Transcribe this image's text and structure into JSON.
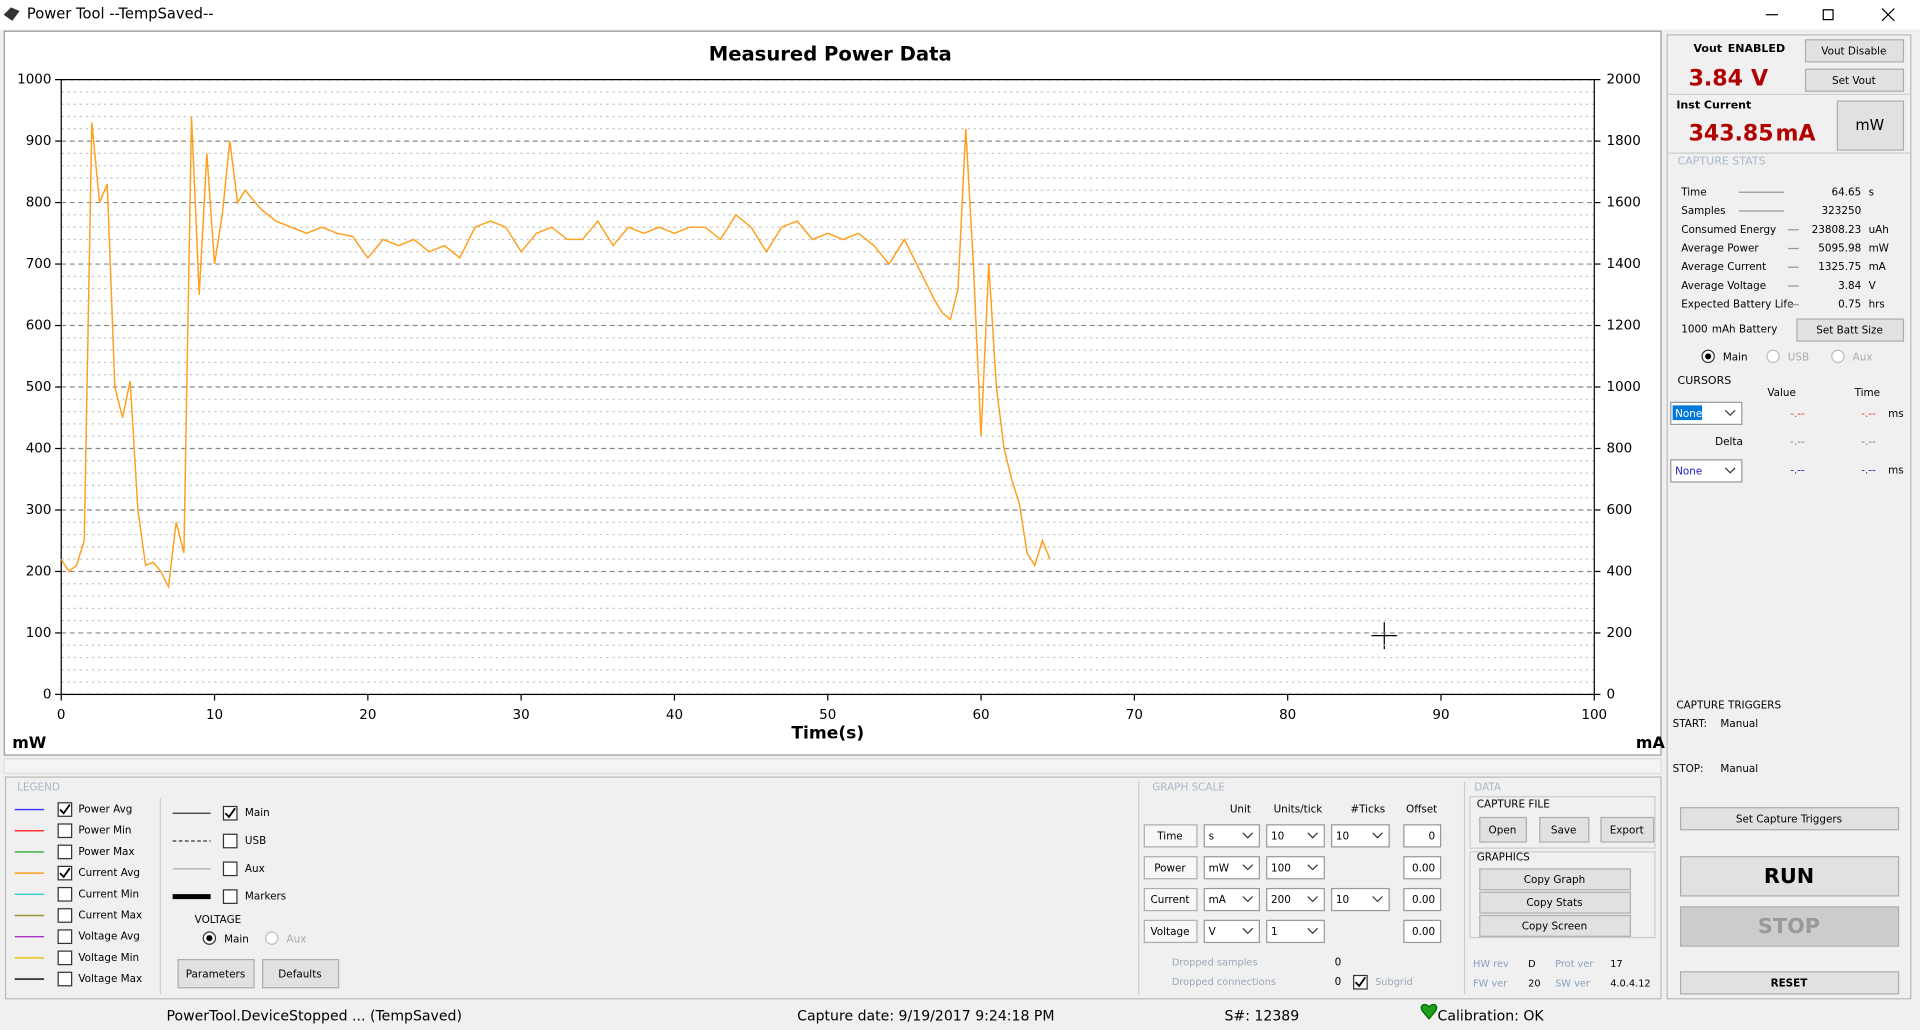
{
  "window": {
    "title": "Power Tool --TempSaved--"
  },
  "chart_data": {
    "type": "line",
    "title": "Measured Power Data",
    "x_label": "Time(s)",
    "y_label": "mW",
    "y2_label": "mA",
    "x": [
      0,
      0.5,
      1,
      1.5,
      2,
      2.5,
      3,
      3.5,
      4,
      4.5,
      5,
      5.5,
      6,
      6.5,
      7,
      7.5,
      8,
      8.5,
      9,
      9.5,
      10,
      10.5,
      11,
      11.5,
      12,
      13,
      14,
      15,
      16,
      17,
      18,
      19,
      20,
      21,
      22,
      23,
      24,
      25,
      26,
      27,
      28,
      29,
      30,
      31,
      32,
      33,
      34,
      35,
      36,
      37,
      38,
      39,
      40,
      41,
      42,
      43,
      44,
      45,
      46,
      47,
      48,
      49,
      50,
      51,
      52,
      53,
      54,
      55,
      56,
      57,
      57.5,
      58,
      58.5,
      59,
      59.5,
      60,
      60.5,
      61,
      61.5,
      62,
      62.5,
      63,
      63.5,
      64,
      64.5
    ],
    "series": [
      {
        "color": "#ff9f1c",
        "axis": "y2",
        "values": [
          440,
          400,
          420,
          500,
          1860,
          1600,
          1660,
          1000,
          900,
          1020,
          600,
          420,
          430,
          400,
          350,
          560,
          460,
          1880,
          1300,
          1760,
          1400,
          1560,
          1800,
          1600,
          1640,
          1580,
          1540,
          1520,
          1500,
          1520,
          1500,
          1490,
          1420,
          1480,
          1460,
          1480,
          1440,
          1460,
          1420,
          1520,
          1540,
          1520,
          1440,
          1500,
          1520,
          1480,
          1480,
          1540,
          1460,
          1520,
          1500,
          1520,
          1500,
          1520,
          1520,
          1480,
          1560,
          1520,
          1440,
          1520,
          1540,
          1480,
          1500,
          1480,
          1500,
          1460,
          1400,
          1480,
          1380,
          1280,
          1240,
          1220,
          1320,
          1840,
          1400,
          840,
          1400,
          1000,
          800,
          700,
          620,
          460,
          420,
          500,
          440
        ]
      }
    ],
    "xlim": [
      0,
      100
    ],
    "xticks": [
      0,
      10,
      20,
      30,
      40,
      50,
      60,
      70,
      80,
      90,
      100
    ],
    "ylim": [
      0,
      1000
    ],
    "yticks": [
      0,
      100,
      200,
      300,
      400,
      500,
      600,
      700,
      800,
      900,
      1000
    ],
    "y2lim": [
      0,
      2000
    ],
    "y2ticks": [
      0,
      200,
      400,
      600,
      800,
      1000,
      1200,
      1400,
      1600,
      1800,
      2000
    ],
    "grid": true
  },
  "vout": {
    "label": "Vout",
    "state": "ENABLED",
    "disable_button": "Vout Disable",
    "value": "3.84",
    "unit": "V",
    "set_button": "Set Vout"
  },
  "inst_current": {
    "label": "Inst Current",
    "value": "343.85",
    "unit": "mA",
    "toggle_button": "mW"
  },
  "capture_stats": {
    "title": "CAPTURE STATS",
    "rows": [
      [
        "Time",
        "64.65",
        "s"
      ],
      [
        "Samples",
        "323250",
        ""
      ],
      [
        "Consumed Energy",
        "23808.23",
        "uAh"
      ],
      [
        "Average Power",
        "5095.98",
        "mW"
      ],
      [
        "Average Current",
        "1325.75",
        "mA"
      ],
      [
        "Average Voltage",
        "3.84",
        "V"
      ],
      [
        "Expected Battery Life",
        "0.75",
        "hrs"
      ]
    ],
    "battery_size": "1000",
    "battery_unit": "mAh Battery",
    "set_button": "Set Batt Size",
    "channels": [
      "Main",
      "USB",
      "Aux"
    ],
    "selected_channel": 0
  },
  "cursors": {
    "title": "CURSORS",
    "value_header": "Value",
    "time_header": "Time",
    "delta": "Delta",
    "cursor1": "None",
    "cursor2": "None",
    "empty": "-.--",
    "unit": "ms"
  },
  "capture_triggers": {
    "title": "CAPTURE TRIGGERS",
    "start_label": "START:",
    "start": "Manual",
    "stop_label": "STOP:",
    "stop": "Manual",
    "set_button": "Set Capture Triggers"
  },
  "controls": {
    "run": "RUN",
    "stop": "STOP",
    "reset": "RESET"
  },
  "legend": {
    "title": "LEGEND",
    "items": [
      {
        "name": "Power Avg",
        "color": "#3333ff",
        "checked": true
      },
      {
        "name": "Power Min",
        "color": "#ff3333",
        "checked": false
      },
      {
        "name": "Power Max",
        "color": "#33aa33",
        "checked": false
      },
      {
        "name": "Current Avg",
        "color": "#ff9f1c",
        "checked": true
      },
      {
        "name": "Current Min",
        "color": "#33cccc",
        "checked": false
      },
      {
        "name": "Current Max",
        "color": "#999933",
        "checked": false
      },
      {
        "name": "Voltage Avg",
        "color": "#aa33cc",
        "checked": false
      },
      {
        "name": "Voltage Min",
        "color": "#e6c619",
        "checked": false
      },
      {
        "name": "Voltage Max",
        "color": "#000000",
        "checked": false
      }
    ],
    "lines": [
      {
        "name": "Main",
        "style": "solid",
        "checked": true
      },
      {
        "name": "USB",
        "style": "dashed",
        "checked": false
      },
      {
        "name": "Aux",
        "style": "thin",
        "checked": false
      },
      {
        "name": "Markers",
        "style": "thick",
        "checked": false
      }
    ],
    "voltage": {
      "title": "VOLTAGE",
      "options": [
        "Main",
        "Aux"
      ],
      "selected": 0
    },
    "buttons": [
      "Parameters",
      "Defaults"
    ]
  },
  "graph_scale": {
    "title": "GRAPH SCALE",
    "headers": [
      "Unit",
      "Units/tick",
      "#Ticks",
      "Offset"
    ],
    "rows": [
      {
        "name": "Time",
        "unit": "s",
        "per_tick": "10",
        "ticks": "10",
        "offset": "0"
      },
      {
        "name": "Power",
        "unit": "mW",
        "per_tick": "100",
        "offset": "0.00"
      },
      {
        "name": "Current",
        "unit": "mA",
        "per_tick": "200",
        "ticks": "10",
        "offset": "0.00"
      },
      {
        "name": "Voltage",
        "unit": "V",
        "per_tick": "1",
        "offset": "0.00"
      }
    ],
    "dropped_samples": {
      "label": "Dropped samples",
      "value": "0"
    },
    "dropped_connections": {
      "label": "Dropped connections",
      "value": "0"
    },
    "subgrid": {
      "label": "Subgrid",
      "checked": true
    }
  },
  "data_panel": {
    "title": "DATA",
    "capture_file": "CAPTURE FILE",
    "file_buttons": [
      "Open",
      "Save",
      "Export"
    ],
    "graphics": "GRAPHICS",
    "graphics_buttons": [
      "Copy Graph",
      "Copy Stats",
      "Copy Screen"
    ],
    "info": [
      [
        "HW rev",
        "D"
      ],
      [
        "Prot ver",
        "17"
      ],
      [
        "FW ver",
        "20"
      ],
      [
        "SW ver",
        "4.0.4.12"
      ]
    ]
  },
  "status_bar": {
    "state": "PowerTool.DeviceStopped ... (TempSaved)",
    "capture_date": "Capture date: 9/19/2017 9:24:18 PM",
    "serial": "S#: 12389",
    "calibration": "Calibration: OK"
  }
}
